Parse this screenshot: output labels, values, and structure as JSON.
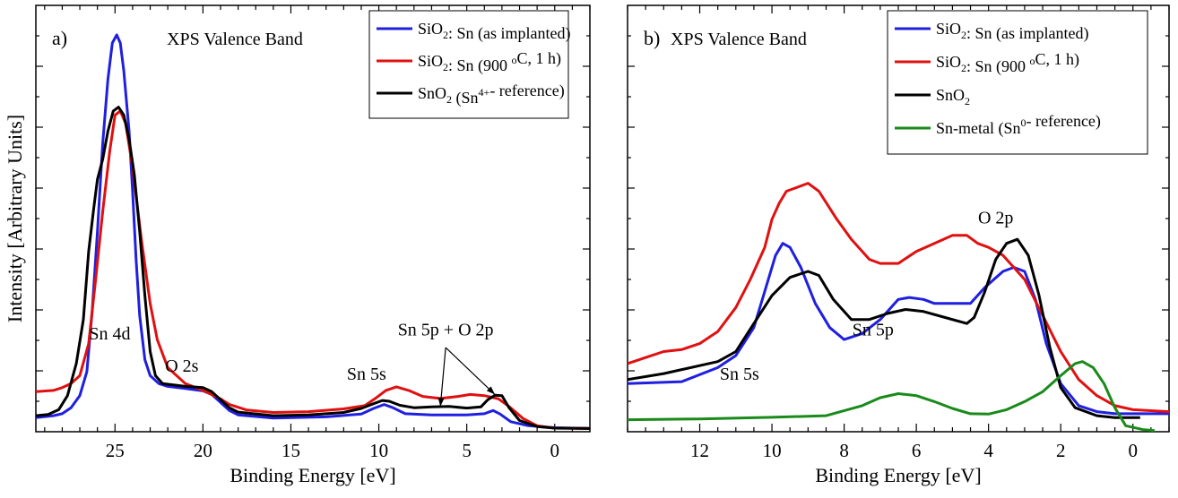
{
  "chart_data": [
    {
      "type": "line",
      "panel_label": "a)",
      "title": "XPS Valence Band",
      "xlabel": "Binding Energy [eV]",
      "ylabel": "Intensity  [Arbitrary  Units]",
      "xlim": [
        29.5,
        -2
      ],
      "ylim": [
        0,
        100
      ],
      "x_ticks": [
        25,
        20,
        15,
        10,
        5,
        0
      ],
      "legend_position": "top-right",
      "annotations": [
        {
          "text": "Sn 4d",
          "x": 25.3,
          "y": 23
        },
        {
          "text": "O 2s",
          "x": 21.2,
          "y": 15
        },
        {
          "text": "Sn 5s",
          "x": 10.7,
          "y": 13
        },
        {
          "text": "Sn 5p + O 2p",
          "x": 6.2,
          "y": 24
        }
      ],
      "series": [
        {
          "name": "SiO₂: Sn (as implanted)",
          "color": "#1f1fe0",
          "points": [
            [
              29.5,
              3.5
            ],
            [
              28.5,
              4
            ],
            [
              28,
              4.5
            ],
            [
              27.5,
              6
            ],
            [
              27,
              9
            ],
            [
              26.6,
              15
            ],
            [
              26.3,
              30
            ],
            [
              26,
              50
            ],
            [
              25.7,
              72
            ],
            [
              25.4,
              88
            ],
            [
              25.15,
              97
            ],
            [
              24.9,
              99
            ],
            [
              24.7,
              97
            ],
            [
              24.5,
              90
            ],
            [
              24.2,
              75
            ],
            [
              24,
              60
            ],
            [
              23.8,
              43
            ],
            [
              23.6,
              29
            ],
            [
              23.3,
              18
            ],
            [
              23,
              14
            ],
            [
              22.5,
              12
            ],
            [
              22,
              11.3
            ],
            [
              21,
              10.8
            ],
            [
              20,
              10.2
            ],
            [
              19.5,
              9.3
            ],
            [
              19,
              7.3
            ],
            [
              18.5,
              5.3
            ],
            [
              18,
              4.2
            ],
            [
              16,
              3.4
            ],
            [
              13,
              3.7
            ],
            [
              11,
              4.4
            ],
            [
              10.3,
              5.8
            ],
            [
              9.7,
              6.8
            ],
            [
              9.2,
              6
            ],
            [
              8.5,
              4.5
            ],
            [
              7,
              4.2
            ],
            [
              5,
              4.2
            ],
            [
              4,
              4.5
            ],
            [
              3.5,
              5.3
            ],
            [
              3.1,
              4.4
            ],
            [
              2.5,
              2.5
            ],
            [
              1.5,
              1.5
            ],
            [
              0,
              1
            ],
            [
              -2,
              0.8
            ]
          ]
        },
        {
          "name": "SiO₂: Sn (900 °C, 1 h)",
          "color": "#e01010",
          "points": [
            [
              29.5,
              10
            ],
            [
              28.5,
              10.3
            ],
            [
              28,
              11
            ],
            [
              27.5,
              12
            ],
            [
              27,
              14
            ],
            [
              26.5,
              22
            ],
            [
              26.1,
              38
            ],
            [
              25.7,
              55
            ],
            [
              25.3,
              70
            ],
            [
              25,
              79
            ],
            [
              24.7,
              80
            ],
            [
              24.4,
              77
            ],
            [
              24,
              66
            ],
            [
              23.5,
              48
            ],
            [
              23,
              32
            ],
            [
              22.6,
              23
            ],
            [
              22,
              16
            ],
            [
              21,
              12
            ],
            [
              20,
              10.3
            ],
            [
              19,
              8.2
            ],
            [
              18.5,
              6.8
            ],
            [
              17.5,
              5.4
            ],
            [
              16,
              4.8
            ],
            [
              14,
              5
            ],
            [
              12,
              5.7
            ],
            [
              10.8,
              6.5
            ],
            [
              10.2,
              8.3
            ],
            [
              9.6,
              10.3
            ],
            [
              9,
              11.2
            ],
            [
              8.3,
              10.3
            ],
            [
              7.5,
              8.8
            ],
            [
              6.5,
              8.3
            ],
            [
              5.5,
              8.8
            ],
            [
              4.8,
              9.3
            ],
            [
              4,
              9
            ],
            [
              3.2,
              8.2
            ],
            [
              2.6,
              6.3
            ],
            [
              1.8,
              3.3
            ],
            [
              1,
              1.5
            ],
            [
              0,
              0.9
            ],
            [
              -2,
              0.8
            ]
          ]
        },
        {
          "name": "SnO₂ (Sn⁴⁺- reference)",
          "color": "#000000",
          "points": [
            [
              29.5,
              4
            ],
            [
              28.8,
              4.3
            ],
            [
              28.2,
              5.5
            ],
            [
              27.7,
              9
            ],
            [
              27.2,
              17
            ],
            [
              26.8,
              28
            ],
            [
              26.5,
              45
            ],
            [
              26.2,
              56
            ],
            [
              26,
              63
            ],
            [
              25.7,
              68
            ],
            [
              25.4,
              75
            ],
            [
              25.1,
              80
            ],
            [
              24.8,
              81
            ],
            [
              24.5,
              79
            ],
            [
              24.2,
              73
            ],
            [
              23.9,
              64
            ],
            [
              23.6,
              50
            ],
            [
              23.3,
              34
            ],
            [
              23,
              20
            ],
            [
              22.7,
              14
            ],
            [
              22.3,
              12
            ],
            [
              21,
              11.3
            ],
            [
              20,
              11
            ],
            [
              19.5,
              10
            ],
            [
              19,
              8
            ],
            [
              18.5,
              6
            ],
            [
              18,
              4.9
            ],
            [
              16,
              4
            ],
            [
              14,
              4.2
            ],
            [
              12,
              4.8
            ],
            [
              11,
              5.8
            ],
            [
              10.3,
              7
            ],
            [
              9.8,
              7.8
            ],
            [
              9.4,
              7.6
            ],
            [
              8.8,
              6.6
            ],
            [
              8,
              6
            ],
            [
              7,
              6.2
            ],
            [
              6,
              6.3
            ],
            [
              5,
              5.9
            ],
            [
              4.2,
              6.2
            ],
            [
              3.8,
              8
            ],
            [
              3.4,
              9.1
            ],
            [
              3,
              9
            ],
            [
              2.6,
              6
            ],
            [
              2,
              2.8
            ],
            [
              1,
              1.3
            ],
            [
              0,
              0.9
            ],
            [
              -2,
              0.8
            ]
          ]
        }
      ]
    },
    {
      "type": "line",
      "panel_label": "b)",
      "title": "XPS Valence Band",
      "xlabel": "Binding Energy [eV]",
      "ylabel": "",
      "xlim": [
        14,
        -1
      ],
      "ylim": [
        0,
        100
      ],
      "x_ticks": [
        12,
        10,
        8,
        6,
        4,
        2,
        0
      ],
      "legend_position": "top-right",
      "annotations": [
        {
          "text": "O 2p",
          "x": 3.8,
          "y": 52
        },
        {
          "text": "Sn 5p",
          "x": 7.2,
          "y": 24
        },
        {
          "text": "Sn 5s",
          "x": 10.9,
          "y": 13
        }
      ],
      "series": [
        {
          "name": "SiO₂: Sn (as implanted)",
          "color": "#1f1fe0",
          "points": [
            [
              14,
              12
            ],
            [
              12.5,
              12.5
            ],
            [
              11.5,
              16
            ],
            [
              11,
              19
            ],
            [
              10.5,
              26
            ],
            [
              10.2,
              35
            ],
            [
              9.9,
              44
            ],
            [
              9.7,
              47
            ],
            [
              9.5,
              46
            ],
            [
              9.2,
              41
            ],
            [
              8.8,
              32
            ],
            [
              8.4,
              26
            ],
            [
              8,
              23
            ],
            [
              7.5,
              24.5
            ],
            [
              7,
              28
            ],
            [
              6.5,
              33
            ],
            [
              6.2,
              33.5
            ],
            [
              5.8,
              33
            ],
            [
              5.5,
              32
            ],
            [
              5,
              32
            ],
            [
              4.5,
              32
            ],
            [
              4.1,
              36
            ],
            [
              3.6,
              40
            ],
            [
              3.3,
              41
            ],
            [
              3,
              40
            ],
            [
              2.7,
              33
            ],
            [
              2.4,
              22
            ],
            [
              2,
              12
            ],
            [
              1.5,
              6.5
            ],
            [
              1,
              5
            ],
            [
              0.5,
              4.5
            ],
            [
              -1,
              4.5
            ]
          ]
        },
        {
          "name": "SiO₂: Sn (900 °C, 1 h)",
          "color": "#e01010",
          "points": [
            [
              14,
              17
            ],
            [
              13.5,
              18.5
            ],
            [
              13,
              20
            ],
            [
              12.5,
              20.5
            ],
            [
              12,
              22
            ],
            [
              11.5,
              25
            ],
            [
              11,
              31
            ],
            [
              10.6,
              38
            ],
            [
              10.2,
              46
            ],
            [
              10,
              53
            ],
            [
              9.8,
              57
            ],
            [
              9.6,
              60
            ],
            [
              9.3,
              61
            ],
            [
              9,
              62
            ],
            [
              8.7,
              60
            ],
            [
              8.2,
              53
            ],
            [
              7.8,
              48
            ],
            [
              7.3,
              43
            ],
            [
              7,
              42
            ],
            [
              6.5,
              42
            ],
            [
              6,
              45
            ],
            [
              5.5,
              47
            ],
            [
              5,
              49
            ],
            [
              4.6,
              49
            ],
            [
              4.3,
              47
            ],
            [
              4,
              46
            ],
            [
              3.6,
              44
            ],
            [
              3,
              38
            ],
            [
              2.5,
              29
            ],
            [
              2,
              20
            ],
            [
              1.5,
              13
            ],
            [
              1,
              9
            ],
            [
              0.5,
              6.5
            ],
            [
              0,
              5.5
            ],
            [
              -1,
              5
            ]
          ]
        },
        {
          "name": "SnO₂",
          "color": "#000000",
          "points": [
            [
              14,
              13
            ],
            [
              13,
              14.5
            ],
            [
              12,
              16.5
            ],
            [
              11.5,
              17.5
            ],
            [
              11,
              20
            ],
            [
              10.5,
              27
            ],
            [
              10,
              34
            ],
            [
              9.5,
              38.5
            ],
            [
              9,
              40
            ],
            [
              8.7,
              39
            ],
            [
              8.3,
              33
            ],
            [
              7.8,
              28
            ],
            [
              7.3,
              28
            ],
            [
              6.8,
              29.5
            ],
            [
              6.3,
              30.5
            ],
            [
              5.8,
              30
            ],
            [
              5.2,
              28.5
            ],
            [
              4.6,
              27
            ],
            [
              4.4,
              28.5
            ],
            [
              4.1,
              35
            ],
            [
              3.8,
              43
            ],
            [
              3.5,
              47
            ],
            [
              3.2,
              48
            ],
            [
              2.9,
              44
            ],
            [
              2.6,
              34
            ],
            [
              2.3,
              21
            ],
            [
              2,
              11
            ],
            [
              1.6,
              6
            ],
            [
              1,
              4
            ],
            [
              0.5,
              3.5
            ],
            [
              0,
              3.5
            ],
            [
              -0.2,
              3.5
            ]
          ]
        },
        {
          "name": "Sn-metal (Sn⁰- reference)",
          "color": "#1a8a1a",
          "points": [
            [
              14,
              3
            ],
            [
              12,
              3.2
            ],
            [
              10,
              3.6
            ],
            [
              8.5,
              4
            ],
            [
              7.5,
              6.5
            ],
            [
              7,
              8.5
            ],
            [
              6.5,
              9.5
            ],
            [
              6,
              9
            ],
            [
              5.5,
              7.5
            ],
            [
              5,
              5.8
            ],
            [
              4.5,
              4.5
            ],
            [
              4,
              4.4
            ],
            [
              3.5,
              5.5
            ],
            [
              3,
              7.5
            ],
            [
              2.5,
              10
            ],
            [
              2,
              14
            ],
            [
              1.6,
              17
            ],
            [
              1.4,
              17.5
            ],
            [
              1.1,
              16
            ],
            [
              0.8,
              12
            ],
            [
              0.5,
              6
            ],
            [
              0.2,
              1.5
            ],
            [
              -0.3,
              0.5
            ],
            [
              -0.6,
              0.3
            ]
          ]
        }
      ]
    }
  ]
}
